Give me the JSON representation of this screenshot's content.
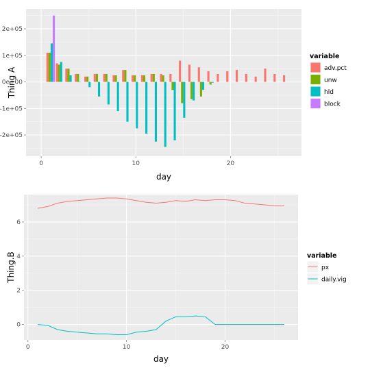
{
  "chart_data": [
    {
      "type": "bar",
      "ylabel": "Thing A",
      "xlabel": "day",
      "x_ticks": [
        0,
        10,
        20
      ],
      "y_ticks": [
        -200000,
        -100000,
        0,
        100000,
        200000
      ],
      "y_tick_labels": [
        "-2e+05",
        "-1e+05",
        "0e+00",
        "1e+05",
        "2e+05"
      ],
      "xlim": [
        -1.6,
        27.5
      ],
      "ylim": [
        -280000,
        275000
      ],
      "legend_title": "variable",
      "legend_position": "right",
      "series": [
        {
          "name": "adv.pct",
          "color": "#F8766D",
          "x": [
            1,
            2,
            3,
            4,
            5,
            6,
            7,
            8,
            9,
            10,
            11,
            12,
            13,
            14,
            15,
            16,
            17,
            18,
            19,
            20,
            21,
            22,
            23,
            24,
            25,
            26
          ],
          "values": [
            110000,
            70000,
            50000,
            30000,
            20000,
            30000,
            30000,
            25000,
            45000,
            25000,
            25000,
            30000,
            30000,
            30000,
            80000,
            65000,
            55000,
            40000,
            30000,
            40000,
            45000,
            30000,
            20000,
            50000,
            30000,
            25000
          ]
        },
        {
          "name": "unw",
          "color": "#7CAE00",
          "x": [
            1,
            2,
            3,
            4,
            5,
            6,
            7,
            8,
            9,
            10,
            11,
            12,
            13,
            14,
            15,
            16,
            17,
            18
          ],
          "values": [
            110000,
            65000,
            50000,
            30000,
            20000,
            30000,
            30000,
            25000,
            45000,
            25000,
            25000,
            30000,
            25000,
            -30000,
            -80000,
            -65000,
            -55000,
            -10000
          ]
        },
        {
          "name": "hld",
          "color": "#00BFC4",
          "x": [
            1,
            2,
            3,
            4,
            5,
            6,
            7,
            8,
            9,
            10,
            11,
            12,
            13,
            14,
            15,
            16,
            17,
            18
          ],
          "values": [
            145000,
            75000,
            25000,
            0,
            -20000,
            -55000,
            -85000,
            -110000,
            -150000,
            -175000,
            -195000,
            -225000,
            -245000,
            -220000,
            -135000,
            -70000,
            -30000,
            -3000
          ]
        },
        {
          "name": "block",
          "color": "#C77CFF",
          "x": [
            1
          ],
          "values": [
            250000
          ]
        }
      ]
    },
    {
      "type": "line",
      "ylabel": "Thing.B",
      "xlabel": "day",
      "x_ticks": [
        0,
        10,
        20
      ],
      "y_ticks": [
        0,
        2,
        4,
        6
      ],
      "xlim": [
        -0.4,
        27.4
      ],
      "ylim": [
        -0.9,
        7.6
      ],
      "legend_title": "variable",
      "legend_position": "right",
      "series": [
        {
          "name": "px",
          "color": "#F8766D",
          "x": [
            1,
            2,
            3,
            4,
            5,
            6,
            7,
            8,
            9,
            10,
            11,
            12,
            13,
            14,
            15,
            16,
            17,
            18,
            19,
            20,
            21,
            22,
            23,
            24,
            25,
            26
          ],
          "values": [
            6.8,
            6.9,
            7.1,
            7.2,
            7.25,
            7.3,
            7.35,
            7.4,
            7.4,
            7.35,
            7.25,
            7.15,
            7.1,
            7.15,
            7.25,
            7.2,
            7.3,
            7.25,
            7.3,
            7.3,
            7.25,
            7.1,
            7.05,
            7.0,
            6.95,
            6.95
          ]
        },
        {
          "name": "daily.vig",
          "color": "#00BFC4",
          "x": [
            1,
            2,
            3,
            4,
            5,
            6,
            7,
            8,
            9,
            10,
            11,
            12,
            13,
            14,
            15,
            16,
            17,
            18,
            19,
            20,
            21,
            22,
            23,
            24,
            25,
            26
          ],
          "values": [
            0,
            -0.05,
            -0.3,
            -0.4,
            -0.45,
            -0.5,
            -0.55,
            -0.55,
            -0.6,
            -0.6,
            -0.45,
            -0.4,
            -0.3,
            0.2,
            0.45,
            0.45,
            0.5,
            0.45,
            0,
            0,
            0,
            0,
            0,
            0,
            0,
            0
          ]
        }
      ]
    }
  ]
}
